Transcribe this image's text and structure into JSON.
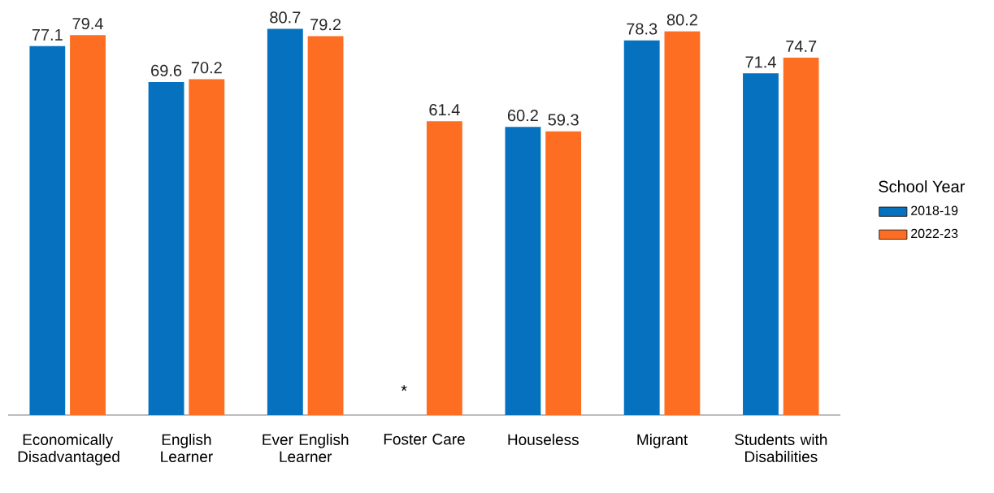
{
  "chart_data": {
    "type": "bar",
    "legend_title": "School Year",
    "legend": "right",
    "data_labels": true,
    "categories": [
      "Economically Disadvantaged",
      "English Learner",
      "Ever English Learner",
      "Foster Care",
      "Houseless",
      "Migrant",
      "Students with Disabilities"
    ],
    "series": [
      {
        "name": "2018-19",
        "color": "#0672bf",
        "values": [
          77.1,
          69.6,
          80.7,
          null,
          60.2,
          78.3,
          71.4
        ],
        "value_labels": [
          "77.1",
          "69.6",
          "80.7",
          "*",
          "60.2",
          "78.3",
          "71.4"
        ]
      },
      {
        "name": "2022-23",
        "color": "#fe6e22",
        "values": [
          79.4,
          70.2,
          79.2,
          61.4,
          59.3,
          80.2,
          74.7
        ]
      }
    ]
  }
}
